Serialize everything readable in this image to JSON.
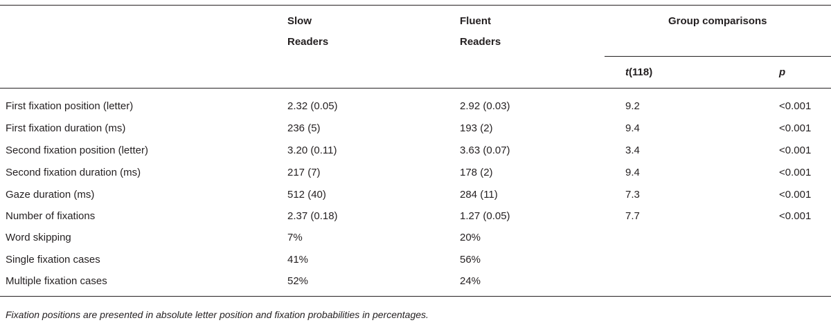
{
  "table": {
    "headers": {
      "col_slow_line1": "Slow",
      "col_slow_line2": "Readers",
      "col_fluent_line1": "Fluent",
      "col_fluent_line2": "Readers",
      "group_comparisons": "Group comparisons",
      "t_stat_symbol": "t",
      "t_stat_df": "(118)",
      "p_value": "p"
    },
    "rows": [
      {
        "label": "First fixation position (letter)",
        "slow": "2.32 (0.05)",
        "fluent": "2.92 (0.03)",
        "t": "9.2",
        "p": "<0.001"
      },
      {
        "label": "First fixation duration (ms)",
        "slow": "236 (5)",
        "fluent": "193 (2)",
        "t": "9.4",
        "p": "<0.001"
      },
      {
        "label": "Second fixation position (letter)",
        "slow": "3.20 (0.11)",
        "fluent": "3.63 (0.07)",
        "t": "3.4",
        "p": "<0.001"
      },
      {
        "label": "Second fixation duration (ms)",
        "slow": "217 (7)",
        "fluent": "178 (2)",
        "t": "9.4",
        "p": "<0.001"
      },
      {
        "label": "Gaze duration (ms)",
        "slow": "512 (40)",
        "fluent": "284 (11)",
        "t": "7.3",
        "p": "<0.001"
      },
      {
        "label": "Number of fixations",
        "slow": "2.37 (0.18)",
        "fluent": "1.27 (0.05)",
        "t": "7.7",
        "p": "<0.001"
      },
      {
        "label": "Word skipping",
        "slow": "7%",
        "fluent": "20%",
        "t": "",
        "p": ""
      },
      {
        "label": "Single fixation cases",
        "slow": "41%",
        "fluent": "56%",
        "t": "",
        "p": ""
      },
      {
        "label": "Multiple fixation cases",
        "slow": "52%",
        "fluent": "24%",
        "t": "",
        "p": ""
      }
    ],
    "footnote": "Fixation positions are presented in absolute letter position and fixation probabilities in percentages."
  }
}
